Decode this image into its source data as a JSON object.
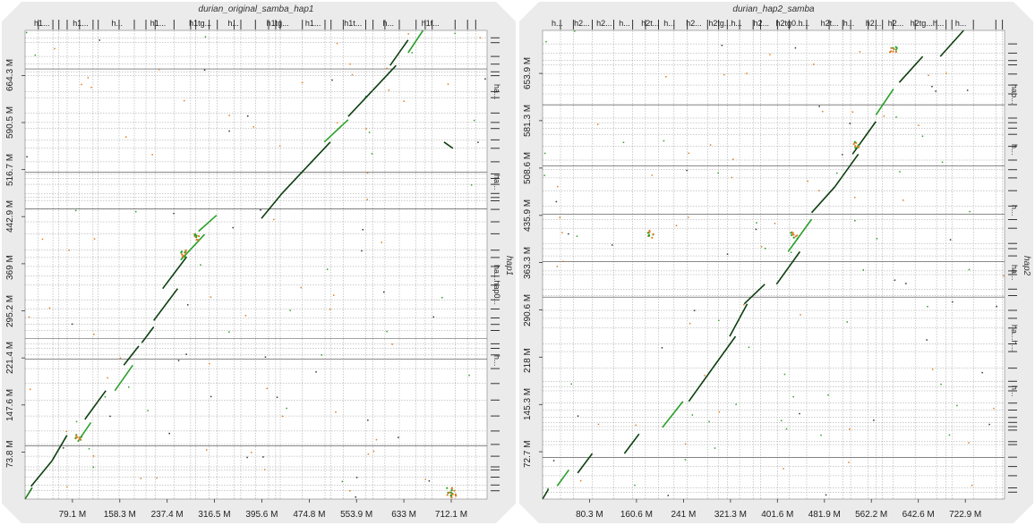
{
  "chart_data": [
    {
      "type": "scatter",
      "title": "durian_original_samba_hap1",
      "ylabel": "hap1",
      "xticks": [
        "79.1 M",
        "158.3 M",
        "237.4 M",
        "316.5 M",
        "395.6 M",
        "474.8 M",
        "553.9 M",
        "633 M",
        "712.1 M"
      ],
      "xtick_values": [
        79.1,
        158.3,
        237.4,
        316.5,
        395.6,
        474.8,
        553.9,
        633,
        712.1
      ],
      "yticks": [
        "73.8 M",
        "147.6 M",
        "221.4 M",
        "295.2 M",
        "369 M",
        "442.9 M",
        "516.7 M",
        "590.5 M",
        "664.3 M"
      ],
      "ytick_values": [
        73.8,
        147.6,
        221.4,
        295.2,
        369,
        442.9,
        516.7,
        590.5,
        664.3
      ],
      "xlim": [
        0,
        772
      ],
      "ylim": [
        0,
        735
      ],
      "top_contig_labels": [
        "h1...",
        "h1...",
        "h...",
        "h1...",
        "h1tg...",
        "h...",
        "h1tg...",
        "h1...",
        "h1t...",
        "h...",
        "h1t..."
      ],
      "right_contig_labels": [
        "ha...",
        "ha...",
        "ha...hap0...",
        "h..."
      ],
      "alignments": [
        {
          "x": [
            0,
            12
          ],
          "y": [
            0,
            18
          ],
          "c": "#1a7a1a"
        },
        {
          "x": [
            10,
            45
          ],
          "y": [
            20,
            60
          ],
          "c": "#0c3f10"
        },
        {
          "x": [
            45,
            70
          ],
          "y": [
            60,
            100
          ],
          "c": "#0c3f10"
        },
        {
          "x": [
            88,
            110
          ],
          "y": [
            90,
            120
          ],
          "c": "#2aa02a"
        },
        {
          "x": [
            100,
            135
          ],
          "y": [
            125,
            170
          ],
          "c": "#0c3f10"
        },
        {
          "x": [
            150,
            180
          ],
          "y": [
            170,
            210
          ],
          "c": "#2aa02a"
        },
        {
          "x": [
            165,
            190
          ],
          "y": [
            210,
            240
          ],
          "c": "#0c3f10"
        },
        {
          "x": [
            195,
            215
          ],
          "y": [
            245,
            270
          ],
          "c": "#0c3f10"
        },
        {
          "x": [
            215,
            255
          ],
          "y": [
            280,
            330
          ],
          "c": "#0c3f10"
        },
        {
          "x": [
            230,
            270
          ],
          "y": [
            330,
            380
          ],
          "c": "#0c3f10"
        },
        {
          "x": [
            260,
            300
          ],
          "y": [
            375,
            415
          ],
          "c": "#2aa02a"
        },
        {
          "x": [
            290,
            320
          ],
          "y": [
            420,
            445
          ],
          "c": "#2aa02a"
        },
        {
          "x": [
            395,
            430
          ],
          "y": [
            440,
            480
          ],
          "c": "#0c3f10"
        },
        {
          "x": [
            430,
            470
          ],
          "y": [
            480,
            520
          ],
          "c": "#0c3f10"
        },
        {
          "x": [
            470,
            510
          ],
          "y": [
            520,
            560
          ],
          "c": "#0c3f10"
        },
        {
          "x": [
            500,
            540
          ],
          "y": [
            560,
            595
          ],
          "c": "#2aa02a"
        },
        {
          "x": [
            540,
            580
          ],
          "y": [
            600,
            640
          ],
          "c": "#0c3f10"
        },
        {
          "x": [
            580,
            620
          ],
          "y": [
            640,
            680
          ],
          "c": "#0c3f10"
        },
        {
          "x": [
            610,
            640
          ],
          "y": [
            680,
            720
          ],
          "c": "#0c3f10"
        },
        {
          "x": [
            640,
            665
          ],
          "y": [
            700,
            735
          ],
          "c": "#2aa02a"
        },
        {
          "x": [
            700,
            715
          ],
          "y": [
            560,
            550
          ],
          "c": "#0c3f10"
        }
      ],
      "hotspots": [
        {
          "x": 89,
          "y": 98
        },
        {
          "x": 263,
          "y": 385
        },
        {
          "x": 285,
          "y": 412
        },
        {
          "x": 710,
          "y": 12
        },
        {
          "x": 716,
          "y": 8
        }
      ]
    },
    {
      "type": "scatter",
      "title": "durian_hap2_samba",
      "ylabel": "hap2",
      "xticks": [
        "80.3 M",
        "160.6 M",
        "241 M",
        "321.3 M",
        "401.6 M",
        "481.9 M",
        "562.2 M",
        "642.6 M",
        "722.9 M"
      ],
      "xtick_values": [
        80.3,
        160.6,
        241,
        321.3,
        401.6,
        481.9,
        562.2,
        642.6,
        722.9
      ],
      "yticks": [
        "72.7 M",
        "145.3 M",
        "218 M",
        "290.6 M",
        "363.3 M",
        "435.9 M",
        "508.6 M",
        "581.3 M",
        "653.9 M"
      ],
      "ytick_values": [
        72.7,
        145.3,
        218,
        290.6,
        363.3,
        435.9,
        508.6,
        581.3,
        653.9
      ],
      "xlim": [
        0,
        790
      ],
      "ylim": [
        0,
        720
      ],
      "top_contig_labels": [
        "h...",
        "h2...",
        "h2...",
        "h...",
        "h2t...",
        "h...",
        "h2...",
        "h2tg...",
        "h...",
        "h2...",
        "h2tg0...",
        "h...",
        "h2t...",
        "h...",
        "h2...",
        "h2...",
        "h2tg...",
        "h...",
        "h..."
      ],
      "right_contig_labels": [
        "hap...",
        "h...",
        "h...",
        "ha...",
        "ha...h...",
        "h..."
      ],
      "alignments": [
        {
          "x": [
            0,
            10
          ],
          "y": [
            0,
            15
          ],
          "c": "#0c3f10"
        },
        {
          "x": [
            25,
            45
          ],
          "y": [
            20,
            45
          ],
          "c": "#2aa02a"
        },
        {
          "x": [
            60,
            85
          ],
          "y": [
            40,
            70
          ],
          "c": "#0c3f10"
        },
        {
          "x": [
            140,
            165
          ],
          "y": [
            70,
            100
          ],
          "c": "#0c3f10"
        },
        {
          "x": [
            205,
            240
          ],
          "y": [
            110,
            150
          ],
          "c": "#2aa02a"
        },
        {
          "x": [
            250,
            290
          ],
          "y": [
            150,
            200
          ],
          "c": "#0c3f10"
        },
        {
          "x": [
            290,
            330
          ],
          "y": [
            200,
            250
          ],
          "c": "#0c3f10"
        },
        {
          "x": [
            320,
            350
          ],
          "y": [
            250,
            300
          ],
          "c": "#0c3f10"
        },
        {
          "x": [
            345,
            380
          ],
          "y": [
            300,
            330
          ],
          "c": "#0c3f10"
        },
        {
          "x": [
            400,
            440
          ],
          "y": [
            330,
            380
          ],
          "c": "#0c3f10"
        },
        {
          "x": [
            420,
            460
          ],
          "y": [
            380,
            430
          ],
          "c": "#2aa02a"
        },
        {
          "x": [
            460,
            500
          ],
          "y": [
            440,
            480
          ],
          "c": "#0c3f10"
        },
        {
          "x": [
            500,
            540
          ],
          "y": [
            480,
            530
          ],
          "c": "#0c3f10"
        },
        {
          "x": [
            530,
            570
          ],
          "y": [
            530,
            580
          ],
          "c": "#0c3f10"
        },
        {
          "x": [
            570,
            600
          ],
          "y": [
            590,
            630
          ],
          "c": "#2aa02a"
        },
        {
          "x": [
            610,
            650
          ],
          "y": [
            640,
            680
          ],
          "c": "#0c3f10"
        },
        {
          "x": [
            680,
            720
          ],
          "y": [
            680,
            720
          ],
          "c": "#0c3f10"
        }
      ],
      "hotspots": [
        {
          "x": 430,
          "y": 405
        },
        {
          "x": 600,
          "y": 690
        },
        {
          "x": 535,
          "y": 545
        },
        {
          "x": 185,
          "y": 407
        }
      ]
    }
  ]
}
